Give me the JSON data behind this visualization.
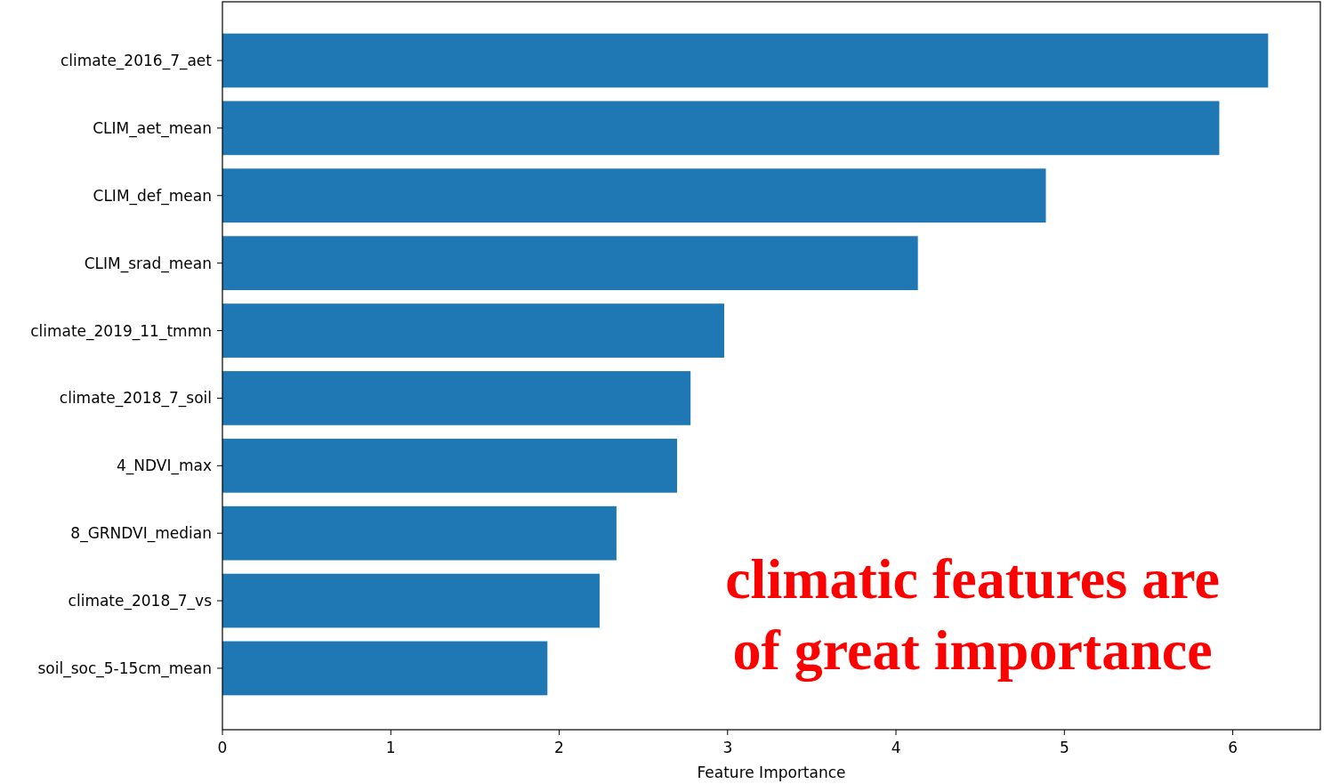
{
  "chart_data": {
    "type": "bar",
    "orientation": "horizontal",
    "xlabel": "Feature Importance",
    "categories": [
      "climate_2016_7_aet",
      "CLIM_aet_mean",
      "CLIM_def_mean",
      "CLIM_srad_mean",
      "climate_2019_11_tmmn",
      "climate_2018_7_soil",
      "4_NDVI_max",
      "8_GRNDVI_median",
      "climate_2018_7_vs",
      "soil_soc_5-15cm_mean"
    ],
    "values": [
      6.21,
      5.92,
      4.89,
      4.13,
      2.98,
      2.78,
      2.7,
      2.34,
      2.24,
      1.93
    ],
    "color": "#1f77b4",
    "xlim": [
      0,
      6.52
    ],
    "xticks": [
      0,
      1,
      2,
      3,
      4,
      5,
      6
    ],
    "grid": false,
    "annotations": [
      "climatic features are of great importance"
    ]
  }
}
